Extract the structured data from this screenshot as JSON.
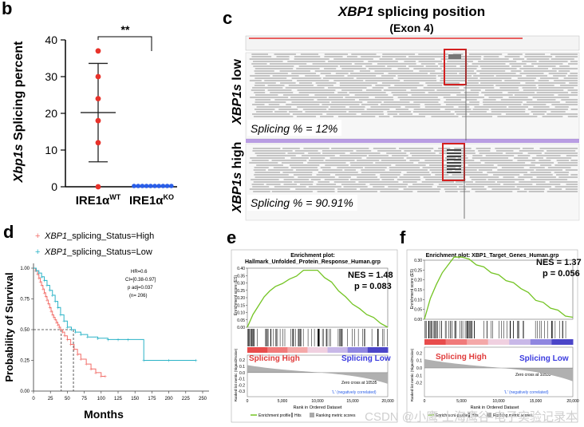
{
  "panels": {
    "b": {
      "label": "b"
    },
    "c": {
      "label": "c",
      "title_gene": "XBP1",
      "title_rest": " splicing position",
      "subtitle": "(Exon 4)"
    },
    "d": {
      "label": "d"
    },
    "e": {
      "label": "e"
    },
    "f": {
      "label": "f"
    }
  },
  "igv": {
    "track_low": {
      "gene": "XBP1s",
      "rest": " low",
      "splicing_text": "Splicing % = 12%"
    },
    "track_high": {
      "gene": "XBP1s",
      "rest": " high",
      "splicing_text": "Splicing % = 90.91%"
    }
  },
  "km_box": [
    "HR=0.6",
    "CI=[0.38-0.97]",
    "p adj=0.037",
    "(n= 206)"
  ],
  "gsea_common": {
    "rank_ylabel": "Ranked list metric (Signal2Noise)",
    "zero_cross": "Zero cross at 10535",
    "neg_corr": "'L' (negatively correlated)",
    "xlabel": "Rank in Ordered Dataset",
    "legend_items": [
      "Enrichment profile",
      "Hits",
      "Ranking metric scores"
    ]
  },
  "watermark": "CSDN @小鹰-上海鹰谷-电子实验记录本",
  "chart_data": [
    {
      "panel": "b",
      "type": "scatter",
      "categories": [
        "IRE1α",
        "IRE1α"
      ],
      "category_superscripts": [
        "WT",
        "KO"
      ],
      "series": [
        {
          "name": "IRE1αWT",
          "color": "#e8322a",
          "values": [
            0,
            12,
            18,
            24,
            30,
            37
          ],
          "mean": 20.2,
          "sd_low": 6.8,
          "sd_high": 33.6
        },
        {
          "name": "IRE1αKO",
          "color": "#2a5ee8",
          "values": [
            0,
            0,
            0,
            0,
            0,
            0,
            0,
            0,
            0,
            0
          ]
        }
      ],
      "ylabel_gene": "Xbp1s",
      "ylabel_rest": " Splicing percent",
      "ylim": [
        0,
        40
      ],
      "yticks": [
        0,
        10,
        20,
        30,
        40
      ],
      "significance": "**"
    },
    {
      "panel": "d",
      "type": "line",
      "xlabel": "Months",
      "ylabel": "Probability of Survival",
      "xlim": [
        0,
        250
      ],
      "ylim": [
        0,
        1
      ],
      "xticks": [
        0,
        25,
        50,
        75,
        100,
        125,
        150,
        175,
        200,
        225,
        250
      ],
      "yticks": [
        0,
        0.25,
        0.5,
        0.75,
        1.0
      ],
      "ytick_labels": [
        "0.00",
        "0.25",
        "0.50",
        "0.75",
        "1.00"
      ],
      "legend": [
        {
          "symbol": "+",
          "gene": "XBP1",
          "rest": "_splicing_Status=High",
          "color": "#f26f6a"
        },
        {
          "symbol": "+",
          "gene": "XBP1",
          "rest": "_splicing_Status=Low",
          "color": "#2bb3c7"
        }
      ],
      "median_lines": [
        {
          "x": 41,
          "y": 0.5
        },
        {
          "x": 59,
          "y": 0.5
        }
      ],
      "series": [
        {
          "name": "High",
          "color": "#f26f6a",
          "x": [
            0,
            3,
            6,
            8,
            10,
            12,
            14,
            16,
            18,
            20,
            22,
            24,
            26,
            28,
            30,
            32,
            34,
            36,
            38,
            40,
            43,
            46,
            50,
            55,
            60,
            65,
            70,
            78,
            85,
            92,
            100,
            106
          ],
          "y": [
            1.0,
            0.98,
            0.95,
            0.92,
            0.89,
            0.86,
            0.83,
            0.8,
            0.77,
            0.74,
            0.71,
            0.68,
            0.65,
            0.62,
            0.6,
            0.58,
            0.56,
            0.54,
            0.52,
            0.5,
            0.48,
            0.45,
            0.42,
            0.38,
            0.34,
            0.3,
            0.26,
            0.22,
            0.18,
            0.15,
            0.12,
            0.12
          ]
        },
        {
          "name": "Low",
          "color": "#2bb3c7",
          "x": [
            0,
            4,
            8,
            12,
            16,
            20,
            24,
            28,
            32,
            36,
            40,
            45,
            50,
            56,
            62,
            70,
            80,
            95,
            110,
            125,
            140,
            163,
            200,
            240
          ],
          "y": [
            1.0,
            0.98,
            0.96,
            0.93,
            0.9,
            0.86,
            0.82,
            0.78,
            0.73,
            0.68,
            0.62,
            0.57,
            0.52,
            0.5,
            0.48,
            0.46,
            0.44,
            0.43,
            0.42,
            0.42,
            0.42,
            0.25,
            0.25,
            0.25
          ]
        }
      ]
    },
    {
      "panel": "e",
      "type": "line",
      "title": "Enrichment plot:",
      "subtitle": "Hallmark_Unfolded_Protein_Response_Human.grp",
      "nes": "NES = 1.48",
      "pval": "p = 0.083",
      "ylabel": "Enrichment score (ES)",
      "ylim": [
        0,
        0.4
      ],
      "yticks": [
        0,
        0.05,
        0.1,
        0.15,
        0.2,
        0.25,
        0.3,
        0.35,
        0.4
      ],
      "ytick_labels": [
        "0.00",
        "0.05",
        "0.10",
        "0.15",
        "0.20",
        "0.25",
        "0.30",
        "0.35",
        "0.40"
      ],
      "xticks": [
        0,
        5000,
        10000,
        15000,
        20000
      ],
      "xtick_labels": [
        "0",
        "5,000",
        "10,000",
        "15,000",
        "20,000"
      ],
      "rank_yticks": [
        -0.3,
        -0.2,
        -0.1,
        0,
        0.1,
        0.2
      ],
      "rank_ytick_labels": [
        "-0.3",
        "-0.2",
        "-0.1",
        "0.0",
        "0.1",
        "0.2"
      ],
      "high_label": "Splicing High",
      "low_label": "Splicing Low",
      "es_x": [
        0,
        800,
        1600,
        2400,
        3200,
        4000,
        5000,
        6000,
        7000,
        8000,
        9000,
        10000,
        11000,
        12000,
        13000,
        14000,
        15000,
        16000,
        17000,
        18000,
        19000,
        20000
      ],
      "es_y": [
        0.0,
        0.08,
        0.15,
        0.2,
        0.25,
        0.27,
        0.3,
        0.32,
        0.35,
        0.38,
        0.39,
        0.38,
        0.34,
        0.3,
        0.25,
        0.2,
        0.16,
        0.12,
        0.09,
        0.06,
        0.03,
        0.0
      ]
    },
    {
      "panel": "f",
      "type": "line",
      "title": "Enrichment plot: XBP1_Target_Genes_Human.grp",
      "nes": "NES = 1.37",
      "pval": "p = 0.056",
      "ylabel": "Enrichment score (ES)",
      "ylim": [
        0,
        0.3
      ],
      "yticks": [
        0,
        0.05,
        0.1,
        0.15,
        0.2,
        0.25,
        0.3
      ],
      "ytick_labels": [
        "0.00",
        "0.05",
        "0.10",
        "0.15",
        "0.20",
        "0.25",
        "0.30"
      ],
      "xticks": [
        0,
        5000,
        10000,
        15000,
        20000
      ],
      "xtick_labels": [
        "0",
        "5,000",
        "10,000",
        "15,000",
        "20,000"
      ],
      "rank_yticks": [
        -0.2,
        -0.1,
        0,
        0.1,
        0.2
      ],
      "rank_ytick_labels": [
        "-0.2",
        "-0.1",
        "0.0",
        "0.1",
        "0.2"
      ],
      "high_label": "Splicing High",
      "low_label": "Splicing Low",
      "es_x": [
        0,
        800,
        1600,
        2400,
        3200,
        4000,
        5000,
        6000,
        7000,
        8000,
        9000,
        10000,
        11000,
        12000,
        13000,
        14000,
        15000,
        16000,
        17000,
        18000,
        19000,
        20000
      ],
      "es_y": [
        0.0,
        0.1,
        0.18,
        0.23,
        0.28,
        0.31,
        0.32,
        0.3,
        0.28,
        0.26,
        0.24,
        0.22,
        0.2,
        0.18,
        0.16,
        0.13,
        0.1,
        0.08,
        0.06,
        0.04,
        0.02,
        0.01
      ]
    }
  ]
}
